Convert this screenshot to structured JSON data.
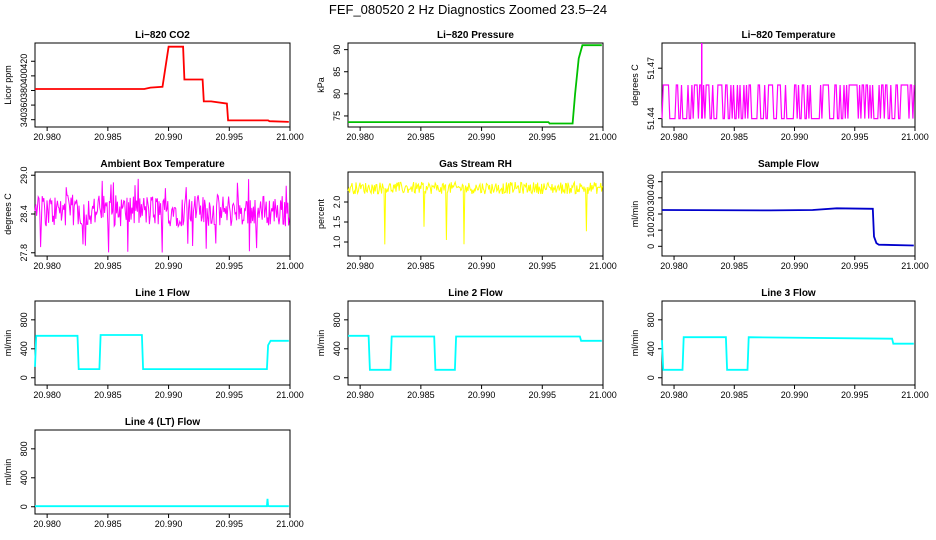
{
  "figure": {
    "title": "FEF_080520  2 Hz Diagnostics Zoomed 23.5–24"
  },
  "chart_data": [
    {
      "type": "line",
      "title": "Li−820 CO2",
      "ylabel": "Licor ppm",
      "xlabel": "",
      "color": "#ff0000",
      "xlim": [
        20.979,
        21.0
      ],
      "xticks": [
        "20.980",
        "20.985",
        "20.990",
        "20.995",
        "21.000"
      ],
      "ylim": [
        330,
        445
      ],
      "yticks": [
        "340",
        "360",
        "380",
        "400",
        "420"
      ],
      "series": [
        {
          "x": [
            20.979,
            20.988,
            20.9885,
            20.9895,
            20.99,
            20.9912,
            20.9913,
            20.9928,
            20.9929,
            20.9935,
            20.9948,
            20.9949,
            20.9982,
            20.9983,
            20.9999
          ],
          "y": [
            382,
            382,
            384,
            385,
            440,
            440,
            395,
            395,
            365,
            365,
            362,
            339,
            339,
            338,
            337
          ]
        }
      ]
    },
    {
      "type": "line",
      "title": "Li−820 Pressure",
      "ylabel": "kPa",
      "xlabel": "",
      "color": "#00c000",
      "xlim": [
        20.979,
        21.0
      ],
      "xticks": [
        "20.980",
        "20.985",
        "20.990",
        "20.995",
        "21.000"
      ],
      "ylim": [
        72.5,
        91.5
      ],
      "yticks": [
        "75",
        "80",
        "85",
        "90"
      ],
      "series": [
        {
          "x": [
            20.979,
            20.9955,
            20.9956,
            20.9975,
            20.9977,
            20.998,
            20.9983,
            20.9999
          ],
          "y": [
            73.6,
            73.6,
            73.3,
            73.3,
            80,
            88,
            91,
            91
          ]
        }
      ]
    },
    {
      "type": "line",
      "title": "Li−820 Temperature",
      "ylabel": "degrees C",
      "xlabel": "",
      "color": "#ff00ff",
      "xlim": [
        20.979,
        21.0
      ],
      "xticks": [
        "20.980",
        "20.985",
        "20.990",
        "20.995",
        "21.000"
      ],
      "ylim": [
        51.435,
        51.485
      ],
      "yticks": [
        "51.44",
        "51.47"
      ],
      "series": [
        {
          "x": [
            20.979,
            21.0
          ],
          "y": [
            51.44,
            51.46
          ],
          "spike": [
            20.9823,
            51.485
          ],
          "style": "binary"
        }
      ]
    },
    {
      "type": "line",
      "title": "Ambient Box Temperature",
      "ylabel": "degrees C",
      "xlabel": "",
      "color": "#ff00ff",
      "xlim": [
        20.979,
        21.0
      ],
      "xticks": [
        "20.980",
        "20.985",
        "20.990",
        "20.995",
        "21.000"
      ],
      "ylim": [
        27.75,
        29.05
      ],
      "yticks": [
        "27.8",
        "28.4",
        "29.0"
      ],
      "series": [
        {
          "x": [
            20.979,
            21.0
          ],
          "y": [
            28.2,
            28.7
          ],
          "style": "noisy"
        }
      ]
    },
    {
      "type": "line",
      "title": "Gas Stream RH",
      "ylabel": "percent",
      "xlabel": "",
      "color": "#ffff00",
      "xlim": [
        20.979,
        21.0
      ],
      "xticks": [
        "20.980",
        "20.985",
        "20.990",
        "20.995",
        "21.000"
      ],
      "ylim": [
        0.65,
        2.75
      ],
      "yticks": [
        "1.0",
        "1.5",
        "2.0"
      ],
      "series": [
        {
          "x": [
            20.979,
            21.0
          ],
          "y": [
            2.2,
            2.5
          ],
          "style": "noisy-dips"
        }
      ]
    },
    {
      "type": "line",
      "title": "Sample Flow",
      "ylabel": "ml/min",
      "xlabel": "",
      "color": "#0000cc",
      "xlim": [
        20.979,
        21.0
      ],
      "xticks": [
        "20.980",
        "20.985",
        "20.990",
        "20.995",
        "21.000"
      ],
      "ylim": [
        -60,
        460
      ],
      "yticks": [
        "0",
        "100",
        "200",
        "300",
        "400"
      ],
      "series": [
        {
          "x": [
            20.979,
            20.988,
            20.9915,
            20.9935,
            20.9965,
            20.9966,
            20.9968,
            20.997,
            20.9999
          ],
          "y": [
            225,
            222,
            225,
            235,
            232,
            60,
            20,
            10,
            5
          ]
        }
      ]
    },
    {
      "type": "line",
      "title": "Line 1 Flow",
      "ylabel": "ml/min",
      "xlabel": "",
      "color": "#00ffff",
      "xlim": [
        20.979,
        21.0
      ],
      "xticks": [
        "20.980",
        "20.985",
        "20.990",
        "20.995",
        "21.000"
      ],
      "ylim": [
        -100,
        1060
      ],
      "yticks": [
        "0",
        "400",
        "800"
      ],
      "series": [
        {
          "x": [
            20.979,
            20.9791,
            20.9825,
            20.9826,
            20.9843,
            20.9844,
            20.9878,
            20.9879,
            20.9981,
            20.9982,
            20.9984,
            20.9999
          ],
          "y": [
            150,
            580,
            580,
            120,
            120,
            590,
            590,
            120,
            120,
            450,
            510,
            510
          ]
        }
      ]
    },
    {
      "type": "line",
      "title": "Line 2 Flow",
      "ylabel": "ml/min",
      "xlabel": "",
      "color": "#00ffff",
      "xlim": [
        20.979,
        21.0
      ],
      "xticks": [
        "20.980",
        "20.985",
        "20.990",
        "20.995",
        "21.000"
      ],
      "ylim": [
        -100,
        1060
      ],
      "yticks": [
        "0",
        "400",
        "800"
      ],
      "series": [
        {
          "x": [
            20.979,
            20.9807,
            20.9808,
            20.9825,
            20.9826,
            20.9861,
            20.9862,
            20.9878,
            20.9879,
            20.9981,
            20.9982,
            20.9999
          ],
          "y": [
            580,
            580,
            110,
            110,
            570,
            570,
            110,
            110,
            570,
            570,
            510,
            510
          ]
        }
      ]
    },
    {
      "type": "line",
      "title": "Line 3 Flow",
      "ylabel": "ml/min",
      "xlabel": "",
      "color": "#00ffff",
      "xlim": [
        20.979,
        21.0
      ],
      "xticks": [
        "20.980",
        "20.985",
        "20.990",
        "20.995",
        "21.000"
      ],
      "ylim": [
        -100,
        1060
      ],
      "yticks": [
        "0",
        "400",
        "800"
      ],
      "series": [
        {
          "x": [
            20.979,
            20.9791,
            20.9807,
            20.9808,
            20.9843,
            20.9844,
            20.9861,
            20.9862,
            20.9981,
            20.9982,
            20.9999
          ],
          "y": [
            520,
            110,
            110,
            560,
            560,
            110,
            110,
            560,
            540,
            470,
            470
          ]
        }
      ]
    },
    {
      "type": "line",
      "title": "Line 4 (LT) Flow",
      "ylabel": "ml/min",
      "xlabel": "",
      "color": "#00ffff",
      "xlim": [
        20.979,
        21.0
      ],
      "xticks": [
        "20.980",
        "20.985",
        "20.990",
        "20.995",
        "21.000"
      ],
      "ylim": [
        -100,
        1060
      ],
      "yticks": [
        "0",
        "400",
        "800"
      ],
      "series": [
        {
          "x": [
            20.979,
            20.9981,
            20.99815,
            20.9982,
            20.9983,
            20.9999
          ],
          "y": [
            8,
            8,
            110,
            10,
            8,
            8
          ]
        }
      ]
    }
  ]
}
